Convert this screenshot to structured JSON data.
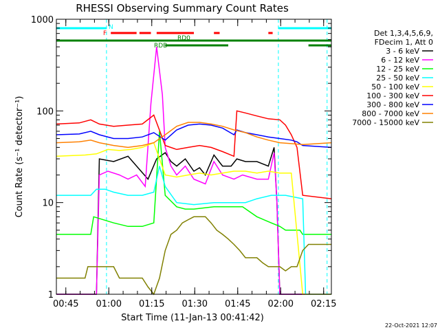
{
  "chart_data": {
    "type": "line",
    "title": "RHESSI Observing Summary Count Rates",
    "xlabel": "Start Time (11-Jan-13 00:41:42)",
    "ylabel": "Count Rate (s⁻¹ detector⁻¹)",
    "yscale": "log",
    "ylim": [
      1,
      1000
    ],
    "xlim_minutes_after_0041": [
      0,
      96
    ],
    "y_ticks": [
      "1",
      "10",
      "100",
      "1000"
    ],
    "x_ticks": [
      {
        "label": "00:45",
        "minute": 3.3
      },
      {
        "label": "01:00",
        "minute": 18.3
      },
      {
        "label": "01:15",
        "minute": 33.3
      },
      {
        "label": "01:30",
        "minute": 48.3
      },
      {
        "label": "01:45",
        "minute": 63.3
      },
      {
        "label": "02:00",
        "minute": 78.3
      },
      {
        "label": "02:15",
        "minute": 93.3
      }
    ],
    "legend_header": [
      "Det 1,3,4,5,6,9,",
      "FDecim 1, Att 0"
    ],
    "legend_placement": "right",
    "series": [
      {
        "name": "3 - 6 keV",
        "color": "#000000",
        "x": [
          0,
          10,
          14,
          15,
          20,
          25,
          28,
          32,
          35,
          38,
          40,
          42,
          45,
          48,
          50,
          52,
          55,
          58,
          61,
          63,
          66,
          70,
          74,
          76,
          77,
          78,
          80,
          83,
          86,
          96
        ],
        "y": [
          1,
          1,
          1,
          30,
          28,
          32,
          25,
          18,
          30,
          35,
          28,
          25,
          30,
          22,
          24,
          20,
          33,
          25,
          25,
          30,
          28,
          28,
          25,
          40,
          10,
          1,
          1,
          1,
          1,
          1
        ]
      },
      {
        "name": "6 - 12 keV",
        "color": "#ff00ff",
        "x": [
          0,
          14,
          15,
          18,
          22,
          25,
          28,
          31,
          33,
          35,
          37,
          38,
          40,
          42,
          45,
          48,
          52,
          55,
          58,
          62,
          65,
          70,
          74,
          76,
          77,
          78,
          86,
          96
        ],
        "y": [
          1,
          1,
          20,
          22,
          20,
          18,
          20,
          15,
          120,
          500,
          150,
          40,
          25,
          20,
          25,
          18,
          16,
          28,
          20,
          18,
          20,
          18,
          18,
          35,
          10,
          1,
          1,
          1
        ]
      },
      {
        "name": "12 - 25 keV",
        "color": "#00ff00",
        "x": [
          0,
          12,
          13,
          20,
          25,
          30,
          34,
          36,
          38,
          42,
          45,
          48,
          55,
          60,
          65,
          70,
          75,
          78,
          80,
          85,
          86,
          96
        ],
        "y": [
          4.5,
          4.5,
          7,
          6,
          5.5,
          5.5,
          6,
          60,
          12,
          9,
          8.5,
          8.5,
          9,
          9,
          9,
          7,
          6,
          5.5,
          5,
          5,
          4.5,
          4.5
        ]
      },
      {
        "name": "25 - 50 keV",
        "color": "#00ffff",
        "x": [
          0,
          12,
          14,
          17,
          20,
          25,
          30,
          34,
          36,
          38,
          42,
          48,
          55,
          60,
          63,
          66,
          70,
          75,
          80,
          86,
          87,
          96
        ],
        "y": [
          12,
          12,
          14,
          14,
          13,
          12,
          12,
          13,
          25,
          15,
          10,
          9.5,
          10,
          10,
          10,
          10,
          11,
          12,
          12,
          11,
          1,
          1
        ]
      },
      {
        "name": "50 - 100 keV",
        "color": "#ffff00",
        "x": [
          0,
          10,
          14,
          18,
          22,
          26,
          30,
          34,
          38,
          42,
          46,
          50,
          54,
          58,
          62,
          66,
          70,
          74,
          78,
          82,
          86,
          96
        ],
        "y": [
          32,
          33,
          34,
          38,
          37,
          38,
          40,
          45,
          20,
          19,
          20,
          21,
          20,
          21,
          22,
          22,
          21,
          22,
          21,
          21,
          1,
          1
        ]
      },
      {
        "name": "100 - 300 keV",
        "color": "#ff0000",
        "x": [
          0,
          8,
          12,
          15,
          20,
          25,
          30,
          34,
          38,
          42,
          46,
          50,
          54,
          58,
          62,
          63,
          66,
          70,
          74,
          78,
          80,
          82,
          84,
          86,
          96
        ],
        "y": [
          72,
          74,
          80,
          72,
          68,
          70,
          72,
          90,
          42,
          38,
          40,
          42,
          40,
          36,
          32,
          100,
          95,
          88,
          82,
          80,
          70,
          55,
          40,
          12,
          11
        ]
      },
      {
        "name": "300 - 800 keV",
        "color": "#0000ff",
        "x": [
          0,
          8,
          12,
          15,
          20,
          25,
          30,
          34,
          38,
          42,
          46,
          50,
          54,
          58,
          62,
          63,
          66,
          70,
          74,
          78,
          82,
          84,
          86,
          96
        ],
        "y": [
          55,
          56,
          60,
          55,
          50,
          50,
          52,
          58,
          48,
          62,
          70,
          72,
          70,
          65,
          55,
          62,
          58,
          55,
          52,
          50,
          48,
          46,
          42,
          40
        ]
      },
      {
        "name": "800 - 7000 keV",
        "color": "#ff8000",
        "x": [
          0,
          8,
          12,
          15,
          20,
          25,
          30,
          34,
          38,
          42,
          46,
          50,
          54,
          58,
          62,
          66,
          70,
          74,
          78,
          82,
          86,
          96
        ],
        "y": [
          45,
          46,
          48,
          45,
          42,
          40,
          42,
          45,
          55,
          68,
          75,
          75,
          72,
          68,
          62,
          58,
          52,
          48,
          45,
          44,
          43,
          45
        ]
      },
      {
        "name": "7000 - 15000 keV",
        "color": "#808000",
        "x": [
          0,
          10,
          11,
          20,
          22,
          30,
          32,
          34,
          36,
          38,
          40,
          42,
          44,
          46,
          48,
          50,
          52,
          54,
          56,
          58,
          60,
          62,
          64,
          66,
          68,
          70,
          72,
          74,
          76,
          78,
          80,
          82,
          84,
          86,
          88,
          96
        ],
        "y": [
          1.5,
          1.5,
          2,
          2,
          1.5,
          1.5,
          1.2,
          1,
          1.5,
          3,
          4.5,
          5,
          6,
          6.5,
          7,
          7,
          7,
          6,
          5,
          4.5,
          4,
          3.5,
          3,
          2.5,
          2.5,
          2.5,
          2.2,
          2,
          2,
          2,
          1.8,
          2,
          2,
          3,
          3.5,
          3.5
        ]
      }
    ],
    "state_bars": [
      {
        "label": "N",
        "color": "#00ffff",
        "row": 1,
        "segments": [
          [
            0,
            17.5
          ],
          [
            77.5,
            96
          ]
        ]
      },
      {
        "label": "F",
        "color": "#ff0000",
        "row": 2,
        "segments": [
          [
            19,
            28
          ],
          [
            29,
            33
          ],
          [
            35,
            48
          ],
          [
            55,
            57
          ],
          [
            74,
            75.5
          ]
        ]
      },
      {
        "label": "RD0",
        "color": "#008000",
        "row": 3,
        "segments": [
          [
            0,
            96
          ]
        ]
      },
      {
        "label": "RDB",
        "color": "#008000",
        "row": 4,
        "segments": [
          [
            38,
            60
          ],
          [
            88,
            96
          ]
        ]
      }
    ],
    "markers": {
      "color": "#00ffff",
      "minutes": [
        17.5,
        77.5,
        94.5
      ]
    },
    "grid": false
  },
  "footer": {
    "date": "22-Oct-2021 12:07"
  }
}
